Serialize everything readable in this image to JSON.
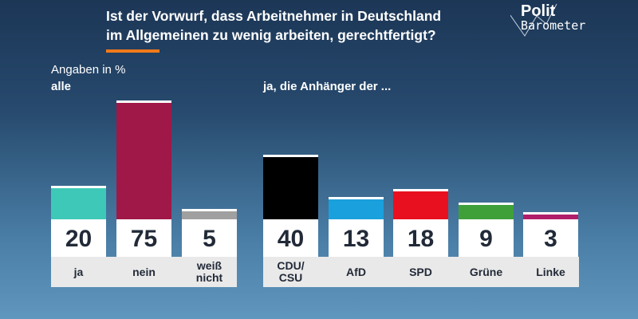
{
  "title_line1": "Ist der Vorwurf, dass Arbeitnehmer in Deutschland",
  "title_line2": "im Allgemeinen zu wenig arbeiten, gerechtfertigt?",
  "logo": {
    "line1": "Polit",
    "line2": "Barometer"
  },
  "accent_color": "#f07a1a",
  "chart_data": [
    {
      "type": "bar",
      "subtitle": "Angaben in %",
      "group_label": "alle",
      "categories": [
        "ja",
        "nein",
        "weiß\nnicht"
      ],
      "values": [
        20,
        75,
        5
      ],
      "colors": [
        "#3ec8b8",
        "#a01848",
        "#a0a0a0"
      ]
    },
    {
      "type": "bar",
      "group_label": "ja, die Anhänger der ...",
      "categories": [
        "CDU/\nCSU",
        "AfD",
        "SPD",
        "Grüne",
        "Linke"
      ],
      "values": [
        40,
        13,
        18,
        9,
        3
      ],
      "colors": [
        "#000000",
        "#1aa0dc",
        "#e8101e",
        "#3fa03a",
        "#b01e6a"
      ]
    }
  ]
}
